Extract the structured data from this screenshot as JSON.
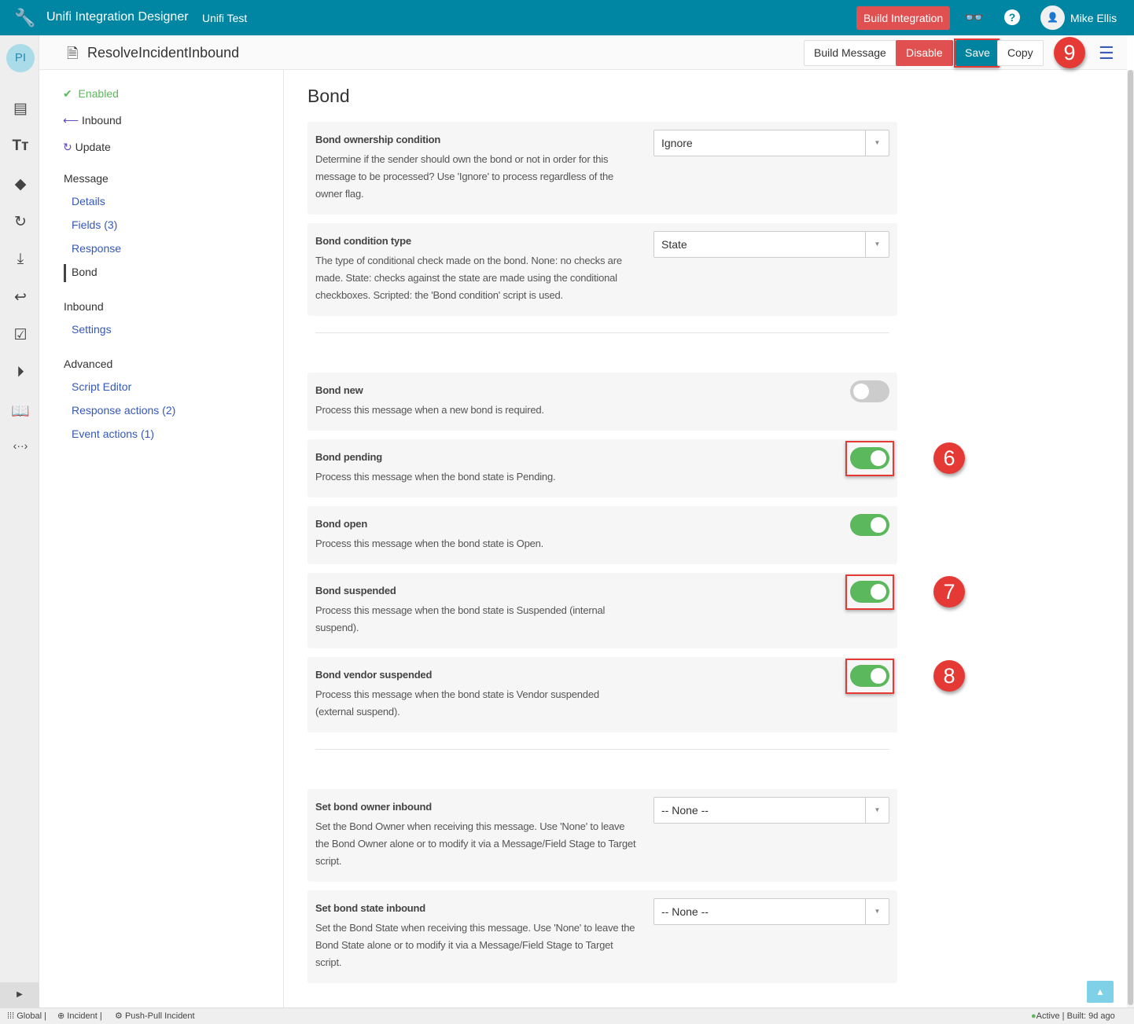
{
  "topbar": {
    "app_title": "Unifi Integration Designer",
    "instance": "Unifi Test",
    "build_integration": "Build Integration",
    "user_name": "Mike Ellis",
    "avatar_alt": "👤",
    "help": "?"
  },
  "rail": {
    "initials": "PI"
  },
  "header": {
    "title": "ResolveIncidentInbound",
    "build_message": "Build Message",
    "disable": "Disable",
    "save": "Save",
    "copy": "Copy"
  },
  "nav": {
    "status": "Enabled",
    "direction": "Inbound",
    "action": "Update",
    "sections": [
      {
        "title": "Message",
        "items": [
          "Details",
          "Fields (3)",
          "Response",
          "Bond"
        ]
      },
      {
        "title": "Inbound",
        "items": [
          "Settings"
        ]
      },
      {
        "title": "Advanced",
        "items": [
          "Script Editor",
          "Response actions (2)",
          "Event actions (1)"
        ]
      }
    ],
    "active": "Bond"
  },
  "main": {
    "heading": "Bond",
    "selects": [
      {
        "label": "Bond ownership condition",
        "desc": "Determine if the sender should own the bond or not in order for this message to be processed? Use 'Ignore' to process regardless of the owner flag.",
        "value": "Ignore"
      },
      {
        "label": "Bond condition type",
        "desc": "The type of conditional check made on the bond. None: no checks are made. State: checks against the state are made using the conditional checkboxes. Scripted: the 'Bond condition' script is used.",
        "value": "State"
      },
      {
        "label": "Set bond owner inbound",
        "desc": "Set the Bond Owner when receiving this message. Use 'None' to leave the Bond Owner alone or to modify it via a Message/Field Stage to Target script.",
        "value": "-- None --"
      },
      {
        "label": "Set bond state inbound",
        "desc": "Set the Bond State when receiving this message. Use 'None' to leave the Bond State alone or to modify it via a Message/Field Stage to Target script.",
        "value": "-- None --"
      }
    ],
    "toggles": [
      {
        "label": "Bond new",
        "desc": "Process this message when a new bond is required.",
        "on": false
      },
      {
        "label": "Bond pending",
        "desc": "Process this message when the bond state is Pending.",
        "on": true
      },
      {
        "label": "Bond open",
        "desc": "Process this message when the bond state is Open.",
        "on": true
      },
      {
        "label": "Bond suspended",
        "desc": "Process this message when the bond state is Suspended (internal suspend).",
        "on": true
      },
      {
        "label": "Bond vendor suspended",
        "desc": "Process this message when the bond state is Vendor suspended (external suspend).",
        "on": true
      }
    ]
  },
  "annotations": {
    "a6": "6",
    "a7": "7",
    "a8": "8",
    "a9": "9"
  },
  "footer": {
    "scope": "Global",
    "table": "Incident",
    "process": "Push-Pull Incident",
    "status": "Active",
    "built": "Built: 9d ago"
  },
  "colors": {
    "topbar": "#0086a3",
    "danger": "#e05050",
    "toggle_on": "#5cb85c",
    "link": "#3558b8",
    "annotation": "#e53935"
  }
}
